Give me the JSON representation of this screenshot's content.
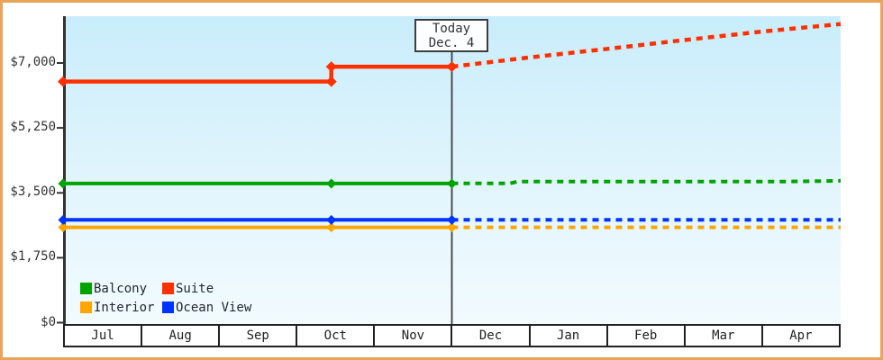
{
  "frame": {
    "border_color": "#e9a45c",
    "background": "#ffffff"
  },
  "plot": {
    "bg_top_color": "#c9edfb",
    "bg_bottom_color": "#f2fbfe",
    "axis_color": "#333333"
  },
  "today_annotation": {
    "line1": "Today",
    "line2": "Dec. 4",
    "month_position": 5.0
  },
  "legend": {
    "items": [
      {
        "label": "Balcony",
        "color": "#00a300"
      },
      {
        "label": "Suite",
        "color": "#ff3000"
      },
      {
        "label": "Interior",
        "color": "#ffa500"
      },
      {
        "label": "Ocean View",
        "color": "#0033ff"
      }
    ]
  },
  "chart_data": {
    "type": "line",
    "x_unit": "months_from_jul_cell_start",
    "categories": [
      "Jul",
      "Aug",
      "Sep",
      "Oct",
      "Nov",
      "Dec",
      "Jan",
      "Feb",
      "Mar",
      "Apr"
    ],
    "y_ticks": [
      {
        "value": 0,
        "label": "$0"
      },
      {
        "value": 1750,
        "label": "$1,750"
      },
      {
        "value": 3500,
        "label": "$3,500"
      },
      {
        "value": 5250,
        "label": "$5,250"
      },
      {
        "value": 7000,
        "label": "$7,000"
      }
    ],
    "ylim": [
      0,
      8260
    ],
    "grid": false,
    "legend_position": "bottom-left-inside",
    "annotation": "Today Dec. 4 vertical marker at month position 5.0; solid lines are history, dotted lines are forecast",
    "series": [
      {
        "name": "Suite",
        "color": "#ff3000",
        "solid": [
          [
            0,
            6500
          ],
          [
            3.45,
            6500
          ],
          [
            3.45,
            6900
          ],
          [
            5.0,
            6900
          ]
        ],
        "markers": [
          [
            0,
            6500
          ],
          [
            3.45,
            6500
          ],
          [
            3.45,
            6900
          ],
          [
            5.0,
            6900
          ]
        ],
        "forecast_dotted": [
          [
            5.0,
            6900
          ],
          [
            6,
            7150
          ],
          [
            7,
            7380
          ],
          [
            8,
            7620
          ],
          [
            9,
            7850
          ],
          [
            10,
            8050
          ]
        ]
      },
      {
        "name": "Balcony",
        "color": "#00a300",
        "solid": [
          [
            0,
            3750
          ],
          [
            3.45,
            3750
          ],
          [
            5.0,
            3750
          ]
        ],
        "markers": [
          [
            0,
            3750
          ],
          [
            3.45,
            3750
          ],
          [
            5.0,
            3750
          ]
        ],
        "forecast_dotted": [
          [
            5.0,
            3755
          ],
          [
            5.75,
            3755
          ],
          [
            5.85,
            3805
          ],
          [
            9.3,
            3805
          ],
          [
            10,
            3825
          ]
        ]
      },
      {
        "name": "Interior",
        "color": "#ffa500",
        "solid": [
          [
            0,
            2570
          ],
          [
            3.45,
            2570
          ],
          [
            5.0,
            2570
          ]
        ],
        "markers": [
          [
            0,
            2570
          ],
          [
            3.45,
            2570
          ],
          [
            5.0,
            2570
          ]
        ],
        "forecast_dotted": [
          [
            5.0,
            2570
          ],
          [
            10,
            2570
          ]
        ]
      },
      {
        "name": "Ocean View",
        "color": "#0033ff",
        "solid": [
          [
            0,
            2770
          ],
          [
            3.45,
            2770
          ],
          [
            5.0,
            2770
          ]
        ],
        "markers": [
          [
            0,
            2770
          ],
          [
            3.45,
            2770
          ],
          [
            5.0,
            2770
          ]
        ],
        "forecast_dotted": [
          [
            5.0,
            2770
          ],
          [
            10,
            2770
          ]
        ]
      }
    ]
  }
}
